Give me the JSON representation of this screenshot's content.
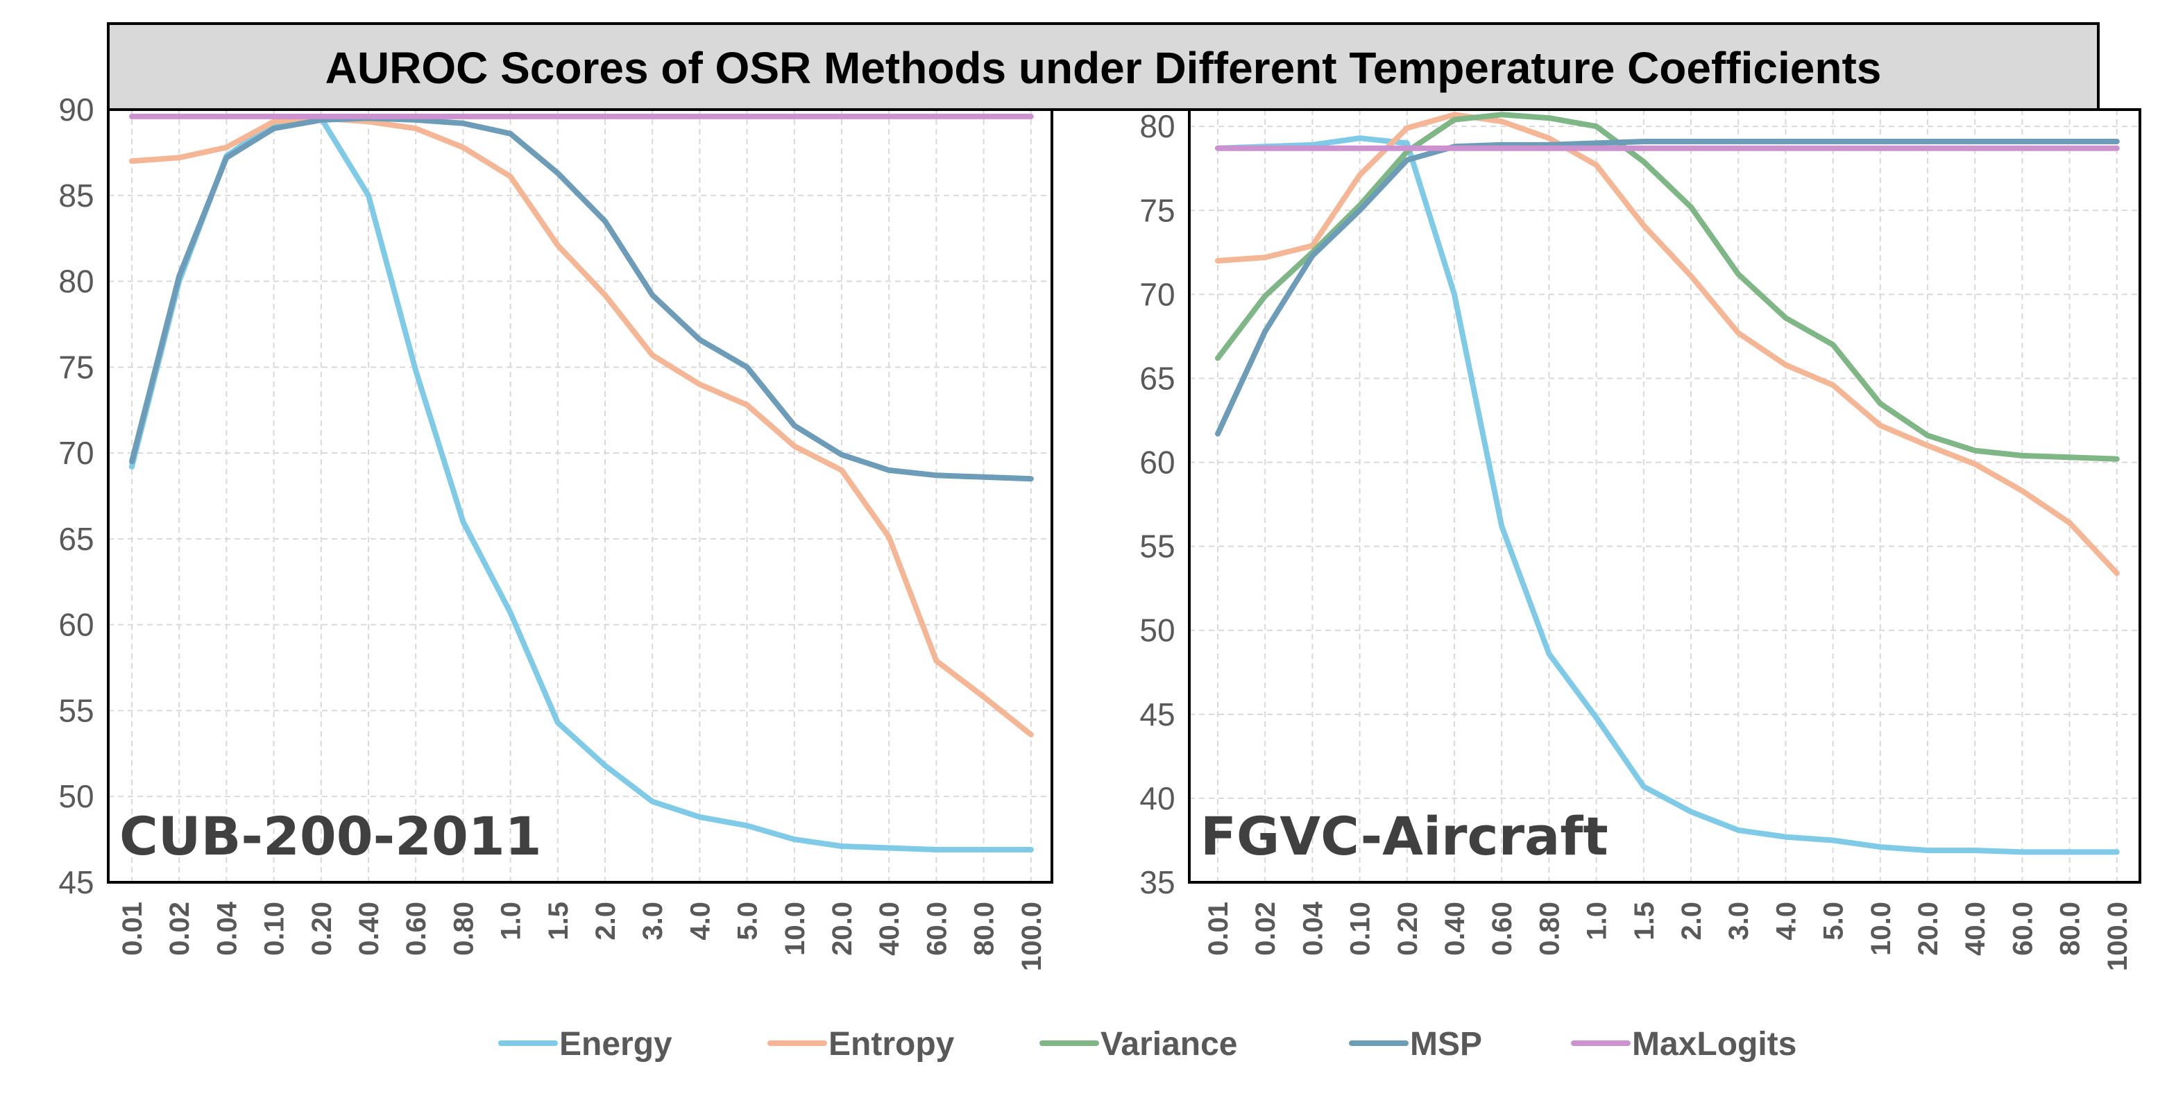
{
  "chart_data": {
    "type": "line",
    "title": "AUROC Scores of OSR Methods under Different Temperature Coefficients",
    "categories": [
      "0.01",
      "0.02",
      "0.04",
      "0.10",
      "0.20",
      "0.40",
      "0.60",
      "0.80",
      "1.0",
      "1.5",
      "2.0",
      "3.0",
      "4.0",
      "5.0",
      "10.0",
      "20.0",
      "40.0",
      "60.0",
      "80.0",
      "100.0"
    ],
    "colors": {
      "Energy": "#7ecae7",
      "Entropy": "#f4b695",
      "Variance": "#7fb686",
      "MSP": "#6c9cb8",
      "MaxLogits": "#cc92d0"
    },
    "legend": {
      "position": "bottom-center",
      "entries": [
        "Energy",
        "Entropy",
        "Variance",
        "MSP",
        "MaxLogits"
      ]
    },
    "panels": [
      {
        "label": "CUB-200-2011",
        "ylim": [
          45,
          90
        ],
        "yticks": [
          45,
          50,
          55,
          60,
          65,
          70,
          75,
          80,
          85,
          90
        ],
        "series": [
          {
            "name": "Energy",
            "values": [
              69.2,
              80.0,
              87.3,
              89.2,
              89.5,
              85.0,
              74.8,
              66.0,
              60.7,
              54.3,
              51.8,
              49.7,
              48.8,
              48.3,
              47.5,
              47.1,
              47.0,
              46.9,
              46.9,
              46.9
            ]
          },
          {
            "name": "Entropy",
            "values": [
              87.0,
              87.2,
              87.8,
              89.3,
              89.5,
              89.3,
              88.9,
              87.8,
              86.1,
              82.1,
              79.2,
              75.7,
              74.0,
              72.8,
              70.4,
              69.0,
              65.1,
              57.9,
              55.8,
              53.6
            ]
          },
          {
            "name": "MSP",
            "values": [
              69.5,
              80.3,
              87.2,
              88.9,
              89.4,
              89.5,
              89.4,
              89.2,
              88.6,
              86.3,
              83.5,
              79.2,
              76.6,
              75.0,
              71.6,
              69.9,
              69.0,
              68.7,
              68.6,
              68.5
            ]
          },
          {
            "name": "MaxLogits",
            "values": [
              89.6,
              89.6,
              89.6,
              89.6,
              89.6,
              89.6,
              89.6,
              89.6,
              89.6,
              89.6,
              89.6,
              89.6,
              89.6,
              89.6,
              89.6,
              89.6,
              89.6,
              89.6,
              89.6,
              89.6
            ]
          }
        ]
      },
      {
        "label": "FGVC-Aircraft",
        "ylim": [
          35,
          81
        ],
        "yticks": [
          35,
          40,
          45,
          50,
          55,
          60,
          65,
          70,
          75,
          80
        ],
        "series": [
          {
            "name": "Energy",
            "values": [
              78.7,
              78.8,
              78.9,
              79.3,
              79.0,
              70.0,
              56.2,
              48.6,
              44.8,
              40.7,
              39.2,
              38.1,
              37.7,
              37.5,
              37.1,
              36.9,
              36.9,
              36.8,
              36.8,
              36.8
            ]
          },
          {
            "name": "Entropy",
            "values": [
              72.0,
              72.2,
              72.9,
              77.1,
              79.9,
              80.7,
              80.3,
              79.3,
              77.7,
              74.1,
              71.1,
              67.7,
              65.8,
              64.6,
              62.2,
              61.0,
              59.9,
              58.3,
              56.4,
              53.4
            ]
          },
          {
            "name": "Variance",
            "values": [
              66.2,
              69.9,
              72.5,
              75.3,
              78.5,
              80.4,
              80.7,
              80.5,
              80.0,
              77.9,
              75.2,
              71.2,
              68.6,
              67.0,
              63.5,
              61.6,
              60.7,
              60.4,
              60.3,
              60.2
            ]
          },
          {
            "name": "MSP",
            "values": [
              61.7,
              67.8,
              72.3,
              75.0,
              78.0,
              78.8,
              78.9,
              78.9,
              79.0,
              79.1,
              79.1,
              79.1,
              79.1,
              79.1,
              79.1,
              79.1,
              79.1,
              79.1,
              79.1,
              79.1
            ]
          },
          {
            "name": "MaxLogits",
            "values": [
              78.7,
              78.7,
              78.7,
              78.7,
              78.7,
              78.7,
              78.7,
              78.7,
              78.7,
              78.7,
              78.7,
              78.7,
              78.7,
              78.7,
              78.7,
              78.7,
              78.7,
              78.7,
              78.7,
              78.7
            ]
          }
        ]
      }
    ]
  }
}
